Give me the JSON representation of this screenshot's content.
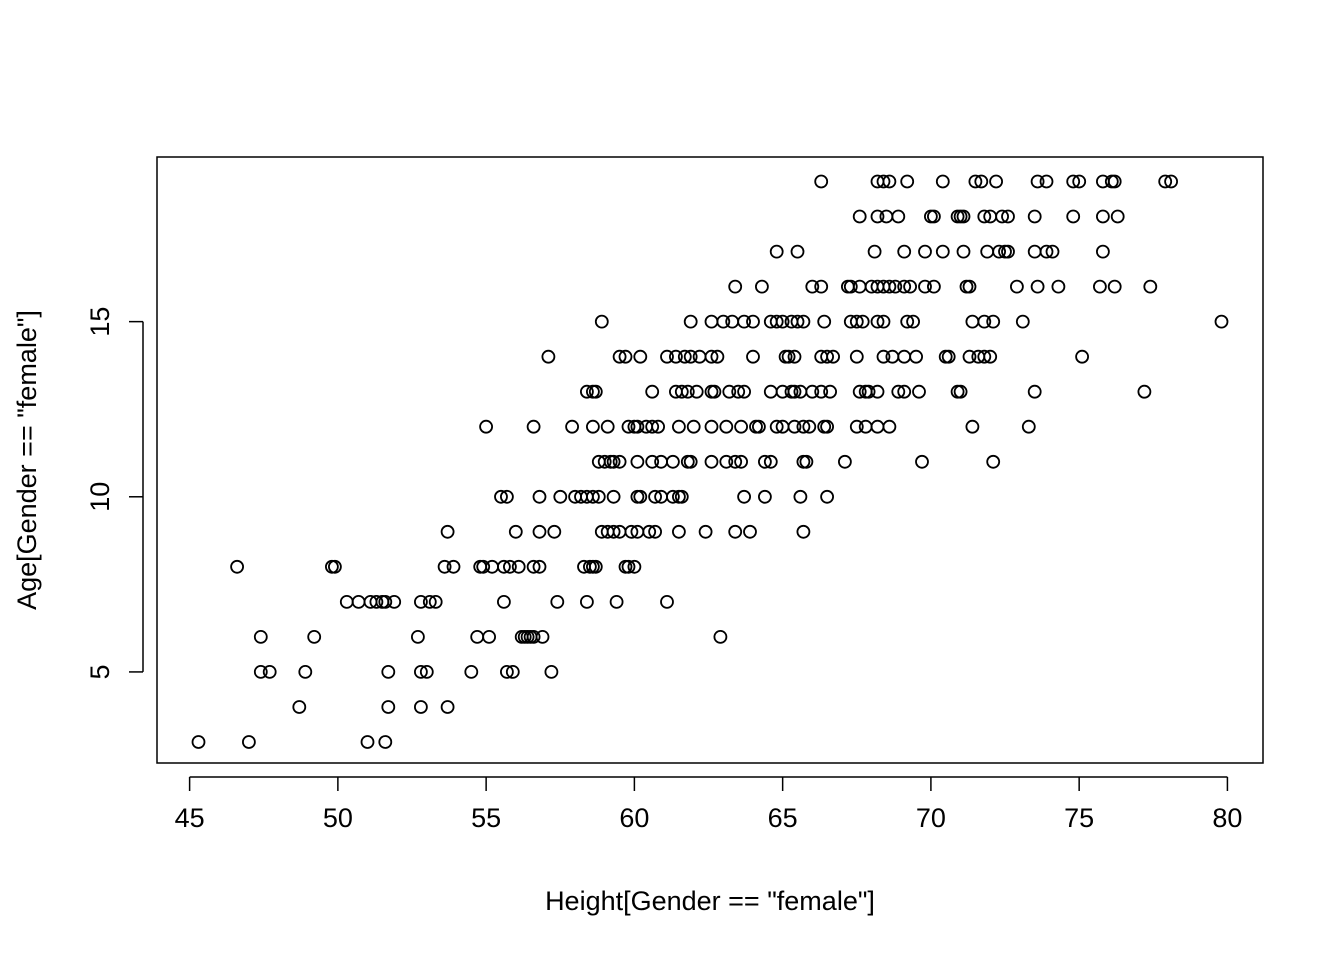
{
  "chart_data": {
    "type": "scatter",
    "xlabel": "Height[Gender == \"female\"]",
    "ylabel": "Age[Gender == \"female\"]",
    "xlim": [
      43.9,
      81.2
    ],
    "ylim": [
      2.4,
      19.7
    ],
    "x_ticks": [
      45,
      50,
      55,
      60,
      65,
      70,
      75,
      80
    ],
    "x_tick_labels": [
      "45",
      "50",
      "55",
      "60",
      "65",
      "70",
      "75",
      "80"
    ],
    "y_ticks": [
      5,
      10,
      15
    ],
    "y_tick_labels": [
      "5",
      "10",
      "15"
    ],
    "marker": "open-circle",
    "grid": false,
    "points": [
      [
        45.3,
        3
      ],
      [
        47.0,
        3
      ],
      [
        51.0,
        3
      ],
      [
        51.6,
        3
      ],
      [
        48.7,
        4
      ],
      [
        51.7,
        4
      ],
      [
        52.8,
        4
      ],
      [
        53.7,
        4
      ],
      [
        47.4,
        5
      ],
      [
        47.7,
        5
      ],
      [
        48.9,
        5
      ],
      [
        51.7,
        5
      ],
      [
        52.8,
        5
      ],
      [
        53.0,
        5
      ],
      [
        54.5,
        5
      ],
      [
        55.7,
        5
      ],
      [
        55.9,
        5
      ],
      [
        57.2,
        5
      ],
      [
        47.4,
        6
      ],
      [
        49.2,
        6
      ],
      [
        52.7,
        6
      ],
      [
        54.7,
        6
      ],
      [
        55.1,
        6
      ],
      [
        56.2,
        6
      ],
      [
        56.3,
        6
      ],
      [
        56.4,
        6
      ],
      [
        56.5,
        6
      ],
      [
        56.6,
        6
      ],
      [
        56.9,
        6
      ],
      [
        62.9,
        6
      ],
      [
        50.3,
        7
      ],
      [
        50.7,
        7
      ],
      [
        51.1,
        7
      ],
      [
        51.3,
        7
      ],
      [
        51.5,
        7
      ],
      [
        51.6,
        7
      ],
      [
        51.9,
        7
      ],
      [
        52.8,
        7
      ],
      [
        53.1,
        7
      ],
      [
        53.3,
        7
      ],
      [
        55.6,
        7
      ],
      [
        57.4,
        7
      ],
      [
        58.4,
        7
      ],
      [
        59.4,
        7
      ],
      [
        61.1,
        7
      ],
      [
        46.6,
        8
      ],
      [
        49.8,
        8
      ],
      [
        49.9,
        8
      ],
      [
        53.6,
        8
      ],
      [
        53.9,
        8
      ],
      [
        54.8,
        8
      ],
      [
        54.9,
        8
      ],
      [
        55.2,
        8
      ],
      [
        55.6,
        8
      ],
      [
        55.8,
        8
      ],
      [
        56.1,
        8
      ],
      [
        56.6,
        8
      ],
      [
        56.8,
        8
      ],
      [
        58.3,
        8
      ],
      [
        58.5,
        8
      ],
      [
        58.6,
        8
      ],
      [
        58.7,
        8
      ],
      [
        59.7,
        8
      ],
      [
        59.8,
        8
      ],
      [
        60.0,
        8
      ],
      [
        53.7,
        9
      ],
      [
        56.0,
        9
      ],
      [
        56.8,
        9
      ],
      [
        57.3,
        9
      ],
      [
        58.9,
        9
      ],
      [
        59.1,
        9
      ],
      [
        59.3,
        9
      ],
      [
        59.5,
        9
      ],
      [
        59.9,
        9
      ],
      [
        60.1,
        9
      ],
      [
        60.5,
        9
      ],
      [
        60.7,
        9
      ],
      [
        61.5,
        9
      ],
      [
        62.4,
        9
      ],
      [
        63.4,
        9
      ],
      [
        63.9,
        9
      ],
      [
        65.7,
        9
      ],
      [
        55.5,
        10
      ],
      [
        55.7,
        10
      ],
      [
        56.8,
        10
      ],
      [
        57.5,
        10
      ],
      [
        58.0,
        10
      ],
      [
        58.2,
        10
      ],
      [
        58.4,
        10
      ],
      [
        58.6,
        10
      ],
      [
        58.8,
        10
      ],
      [
        59.3,
        10
      ],
      [
        60.1,
        10
      ],
      [
        60.2,
        10
      ],
      [
        60.7,
        10
      ],
      [
        60.9,
        10
      ],
      [
        61.3,
        10
      ],
      [
        61.5,
        10
      ],
      [
        61.6,
        10
      ],
      [
        63.7,
        10
      ],
      [
        64.4,
        10
      ],
      [
        65.6,
        10
      ],
      [
        66.5,
        10
      ],
      [
        58.8,
        11
      ],
      [
        59.0,
        11
      ],
      [
        59.2,
        11
      ],
      [
        59.3,
        11
      ],
      [
        59.5,
        11
      ],
      [
        60.1,
        11
      ],
      [
        60.6,
        11
      ],
      [
        60.9,
        11
      ],
      [
        61.3,
        11
      ],
      [
        61.8,
        11
      ],
      [
        61.9,
        11
      ],
      [
        62.6,
        11
      ],
      [
        63.1,
        11
      ],
      [
        63.4,
        11
      ],
      [
        63.6,
        11
      ],
      [
        64.4,
        11
      ],
      [
        64.6,
        11
      ],
      [
        65.7,
        11
      ],
      [
        65.8,
        11
      ],
      [
        67.1,
        11
      ],
      [
        69.7,
        11
      ],
      [
        72.1,
        11
      ],
      [
        55.0,
        12
      ],
      [
        56.6,
        12
      ],
      [
        57.9,
        12
      ],
      [
        58.6,
        12
      ],
      [
        59.1,
        12
      ],
      [
        59.8,
        12
      ],
      [
        60.0,
        12
      ],
      [
        60.1,
        12
      ],
      [
        60.4,
        12
      ],
      [
        60.6,
        12
      ],
      [
        60.8,
        12
      ],
      [
        61.5,
        12
      ],
      [
        62.0,
        12
      ],
      [
        62.6,
        12
      ],
      [
        63.1,
        12
      ],
      [
        63.6,
        12
      ],
      [
        64.1,
        12
      ],
      [
        64.2,
        12
      ],
      [
        64.8,
        12
      ],
      [
        65.0,
        12
      ],
      [
        65.4,
        12
      ],
      [
        65.7,
        12
      ],
      [
        65.9,
        12
      ],
      [
        66.4,
        12
      ],
      [
        66.5,
        12
      ],
      [
        67.5,
        12
      ],
      [
        67.8,
        12
      ],
      [
        68.2,
        12
      ],
      [
        68.6,
        12
      ],
      [
        71.4,
        12
      ],
      [
        73.3,
        12
      ],
      [
        58.4,
        13
      ],
      [
        58.6,
        13
      ],
      [
        58.7,
        13
      ],
      [
        60.6,
        13
      ],
      [
        61.4,
        13
      ],
      [
        61.6,
        13
      ],
      [
        61.8,
        13
      ],
      [
        62.1,
        13
      ],
      [
        62.6,
        13
      ],
      [
        62.7,
        13
      ],
      [
        63.2,
        13
      ],
      [
        63.5,
        13
      ],
      [
        63.7,
        13
      ],
      [
        64.6,
        13
      ],
      [
        65.0,
        13
      ],
      [
        65.3,
        13
      ],
      [
        65.4,
        13
      ],
      [
        65.6,
        13
      ],
      [
        66.0,
        13
      ],
      [
        66.3,
        13
      ],
      [
        66.6,
        13
      ],
      [
        67.6,
        13
      ],
      [
        67.8,
        13
      ],
      [
        67.9,
        13
      ],
      [
        68.2,
        13
      ],
      [
        68.9,
        13
      ],
      [
        69.1,
        13
      ],
      [
        69.6,
        13
      ],
      [
        70.9,
        13
      ],
      [
        71.0,
        13
      ],
      [
        73.5,
        13
      ],
      [
        77.2,
        13
      ],
      [
        57.1,
        14
      ],
      [
        59.5,
        14
      ],
      [
        59.7,
        14
      ],
      [
        60.2,
        14
      ],
      [
        61.1,
        14
      ],
      [
        61.4,
        14
      ],
      [
        61.7,
        14
      ],
      [
        61.9,
        14
      ],
      [
        62.2,
        14
      ],
      [
        62.6,
        14
      ],
      [
        62.8,
        14
      ],
      [
        64.0,
        14
      ],
      [
        65.1,
        14
      ],
      [
        65.2,
        14
      ],
      [
        65.4,
        14
      ],
      [
        66.3,
        14
      ],
      [
        66.5,
        14
      ],
      [
        66.7,
        14
      ],
      [
        67.5,
        14
      ],
      [
        68.4,
        14
      ],
      [
        68.7,
        14
      ],
      [
        69.1,
        14
      ],
      [
        69.5,
        14
      ],
      [
        70.5,
        14
      ],
      [
        70.6,
        14
      ],
      [
        71.3,
        14
      ],
      [
        71.6,
        14
      ],
      [
        71.8,
        14
      ],
      [
        72.0,
        14
      ],
      [
        75.1,
        14
      ],
      [
        58.9,
        15
      ],
      [
        61.9,
        15
      ],
      [
        62.6,
        15
      ],
      [
        63.0,
        15
      ],
      [
        63.3,
        15
      ],
      [
        63.7,
        15
      ],
      [
        64.0,
        15
      ],
      [
        64.6,
        15
      ],
      [
        64.8,
        15
      ],
      [
        65.0,
        15
      ],
      [
        65.3,
        15
      ],
      [
        65.5,
        15
      ],
      [
        65.7,
        15
      ],
      [
        66.4,
        15
      ],
      [
        67.3,
        15
      ],
      [
        67.5,
        15
      ],
      [
        67.7,
        15
      ],
      [
        68.2,
        15
      ],
      [
        68.4,
        15
      ],
      [
        69.2,
        15
      ],
      [
        69.4,
        15
      ],
      [
        71.4,
        15
      ],
      [
        71.8,
        15
      ],
      [
        72.1,
        15
      ],
      [
        73.1,
        15
      ],
      [
        79.8,
        15
      ],
      [
        63.4,
        16
      ],
      [
        64.3,
        16
      ],
      [
        66.0,
        16
      ],
      [
        66.3,
        16
      ],
      [
        67.2,
        16
      ],
      [
        67.3,
        16
      ],
      [
        67.6,
        16
      ],
      [
        68.0,
        16
      ],
      [
        68.2,
        16
      ],
      [
        68.4,
        16
      ],
      [
        68.6,
        16
      ],
      [
        68.8,
        16
      ],
      [
        69.1,
        16
      ],
      [
        69.3,
        16
      ],
      [
        69.8,
        16
      ],
      [
        70.1,
        16
      ],
      [
        71.2,
        16
      ],
      [
        71.3,
        16
      ],
      [
        72.9,
        16
      ],
      [
        73.6,
        16
      ],
      [
        74.3,
        16
      ],
      [
        75.7,
        16
      ],
      [
        76.2,
        16
      ],
      [
        77.4,
        16
      ],
      [
        64.8,
        17
      ],
      [
        65.5,
        17
      ],
      [
        68.1,
        17
      ],
      [
        69.1,
        17
      ],
      [
        69.8,
        17
      ],
      [
        70.4,
        17
      ],
      [
        71.1,
        17
      ],
      [
        71.9,
        17
      ],
      [
        72.3,
        17
      ],
      [
        72.5,
        17
      ],
      [
        72.6,
        17
      ],
      [
        73.5,
        17
      ],
      [
        73.9,
        17
      ],
      [
        74.1,
        17
      ],
      [
        75.8,
        17
      ],
      [
        67.6,
        18
      ],
      [
        68.2,
        18
      ],
      [
        68.5,
        18
      ],
      [
        68.9,
        18
      ],
      [
        70.0,
        18
      ],
      [
        70.1,
        18
      ],
      [
        70.9,
        18
      ],
      [
        71.0,
        18
      ],
      [
        71.1,
        18
      ],
      [
        71.8,
        18
      ],
      [
        72.0,
        18
      ],
      [
        72.4,
        18
      ],
      [
        72.6,
        18
      ],
      [
        73.5,
        18
      ],
      [
        74.8,
        18
      ],
      [
        75.8,
        18
      ],
      [
        76.3,
        18
      ],
      [
        66.3,
        19
      ],
      [
        68.2,
        19
      ],
      [
        68.4,
        19
      ],
      [
        68.6,
        19
      ],
      [
        69.2,
        19
      ],
      [
        70.4,
        19
      ],
      [
        71.5,
        19
      ],
      [
        71.7,
        19
      ],
      [
        72.2,
        19
      ],
      [
        73.6,
        19
      ],
      [
        73.9,
        19
      ],
      [
        74.8,
        19
      ],
      [
        75.0,
        19
      ],
      [
        75.8,
        19
      ],
      [
        76.1,
        19
      ],
      [
        76.2,
        19
      ],
      [
        77.9,
        19
      ],
      [
        78.1,
        19
      ]
    ]
  }
}
